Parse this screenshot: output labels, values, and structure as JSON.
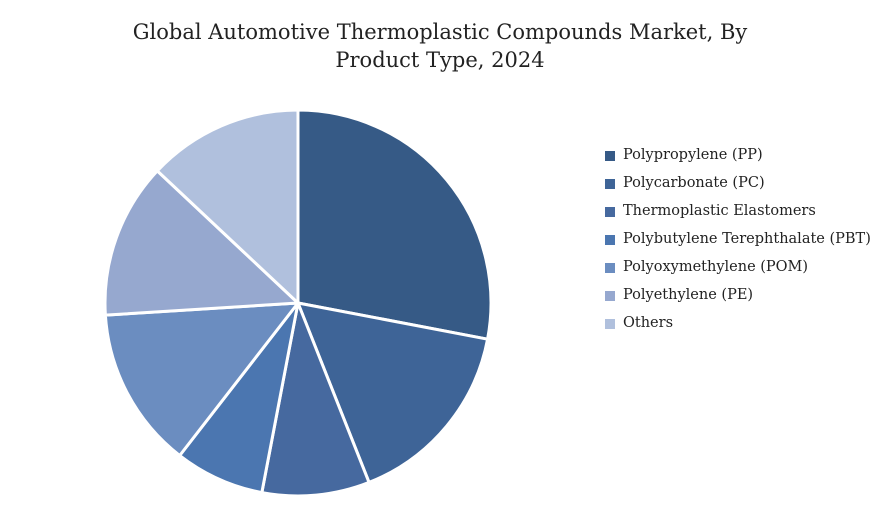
{
  "chart_data": {
    "type": "pie",
    "title": "Global Automotive Thermoplastic Compounds Market, By\nProduct Type, 2024",
    "legend_position": "right",
    "slices": [
      {
        "label": "Polypropylene (PP)",
        "value": 28.0,
        "color": "#365a86"
      },
      {
        "label": "Polycarbonate (PC)",
        "value": 16.0,
        "color": "#3e6497"
      },
      {
        "label": "Thermoplastic Elastomers",
        "value": 9.0,
        "color": "#46699f"
      },
      {
        "label": "Polybutylene Terephthalate (PBT)",
        "value": 7.5,
        "color": "#4b76b0"
      },
      {
        "label": "Polyoxymethylene (POM)",
        "value": 13.5,
        "color": "#6b8dc0"
      },
      {
        "label": "Polyethylene (PE)",
        "value": 13.0,
        "color": "#96a8cf"
      },
      {
        "label": "Others",
        "value": 13.0,
        "color": "#b0c0dd"
      }
    ]
  }
}
